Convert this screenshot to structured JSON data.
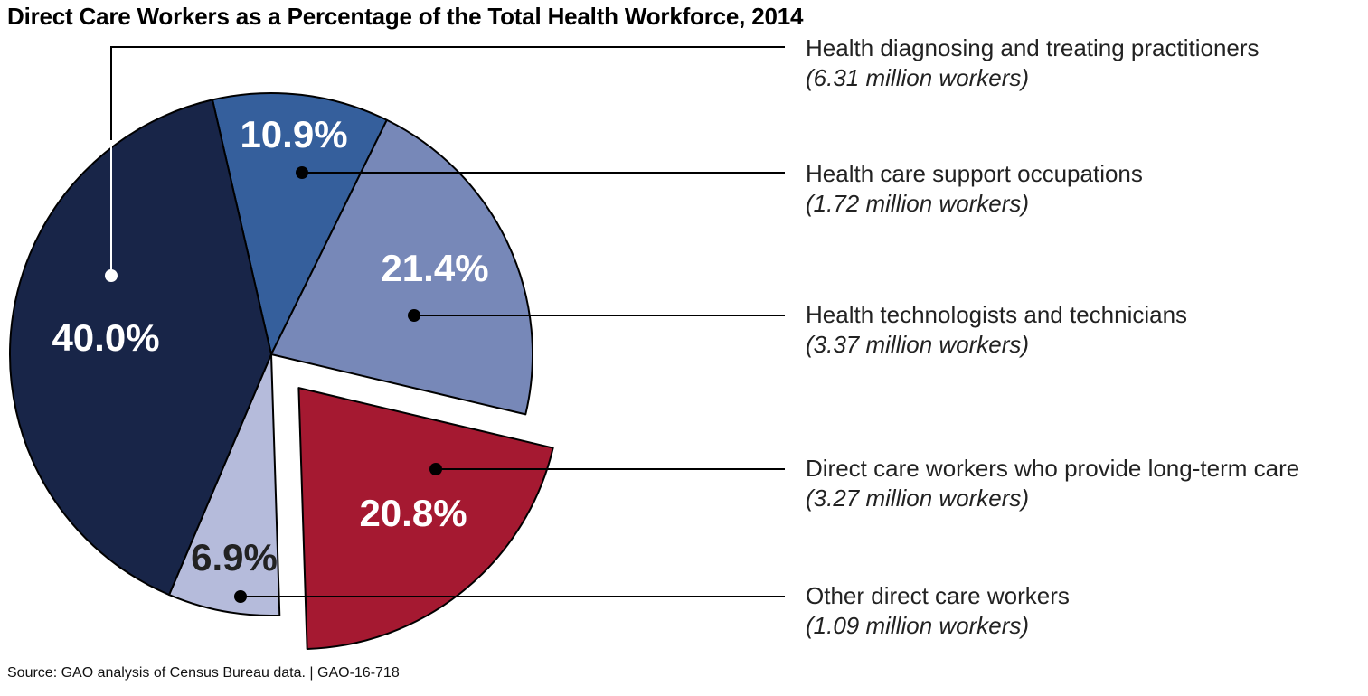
{
  "title": "Direct Care Workers as a Percentage of the Total Health Workforce, 2014",
  "source": "Source: GAO analysis of Census Bureau data.  |  GAO-16-718",
  "chart_data": {
    "type": "pie",
    "title": "Direct Care Workers as a Percentage of the Total Health Workforce, 2014",
    "unit": "percent of total health workforce",
    "exploded": "Direct care workers who provide long-term care",
    "start_angle_deg_clockwise_from_top": -13,
    "direction": "clockwise",
    "slices": [
      {
        "name": "Health care support occupations",
        "value": 10.9,
        "label": "10.9%",
        "workers": "(1.72 million workers)",
        "color": "#355f9c",
        "label_color": "#ffffff"
      },
      {
        "name": "Health technologists and technicians",
        "value": 21.4,
        "label": "21.4%",
        "workers": "(3.37 million workers)",
        "color": "#7788b8",
        "label_color": "#ffffff"
      },
      {
        "name": "Direct care workers who provide long-term care",
        "value": 20.8,
        "label": "20.8%",
        "workers": "(3.27 million workers)",
        "color": "#a51931",
        "label_color": "#ffffff"
      },
      {
        "name": "Other direct care workers",
        "value": 6.9,
        "label": "6.9%",
        "workers": "(1.09 million workers)",
        "color": "#b5bbdb",
        "label_color": "#222222"
      },
      {
        "name": "Health diagnosing and treating practitioners",
        "value": 40.0,
        "label": "40.0%",
        "workers": "(6.31 million workers)",
        "color": "#182548",
        "label_color": "#ffffff"
      }
    ],
    "legend": [
      {
        "name": "Health diagnosing and treating practitioners",
        "workers": "(6.31 million workers)"
      },
      {
        "name": "Health care support occupations",
        "workers": "(1.72 million workers)"
      },
      {
        "name": "Health technologists and technicians",
        "workers": "(3.37 million workers)"
      },
      {
        "name": "Direct care workers who provide long-term care",
        "workers": "(3.27 million workers)"
      },
      {
        "name": "Other direct care workers",
        "workers": "(1.09 million workers)"
      }
    ],
    "legend_placement": "right"
  }
}
